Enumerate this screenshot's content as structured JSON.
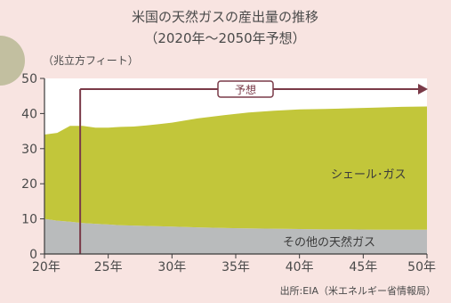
{
  "chart_data": {
    "type": "area",
    "title": "米国の天然ガスの産出量の推移",
    "subtitle": "（2020年〜2050年予想）",
    "ylabel": "（兆立方フィート）",
    "ylim": [
      0,
      50
    ],
    "xlim": [
      2020,
      2050
    ],
    "yticks": [
      0,
      10,
      20,
      30,
      40,
      50
    ],
    "xtick_values": [
      2020,
      2025,
      2030,
      2035,
      2040,
      2045,
      2050
    ],
    "xtick_labels": [
      "20年",
      "25年",
      "30年",
      "35年",
      "40年",
      "45年",
      "50年"
    ],
    "x": [
      2020,
      2021,
      2022,
      2023,
      2024,
      2025,
      2026,
      2027,
      2028,
      2029,
      2030,
      2032,
      2034,
      2036,
      2038,
      2040,
      2042,
      2044,
      2046,
      2048,
      2050
    ],
    "series": [
      {
        "name": "その他の天然ガス",
        "color": "#b9bbbc",
        "values": [
          10,
          9.5,
          9.2,
          8.8,
          8.6,
          8.4,
          8.2,
          8.1,
          8.0,
          7.9,
          7.8,
          7.6,
          7.4,
          7.3,
          7.2,
          7.1,
          7.0,
          7.0,
          6.9,
          6.9,
          6.9
        ]
      },
      {
        "name": "シェール･ガス",
        "color": "#c2c63a",
        "values": [
          24,
          25,
          27.3,
          27.7,
          27.4,
          27.6,
          28.0,
          28.2,
          28.6,
          29.1,
          29.6,
          31.0,
          32.1,
          33.0,
          33.6,
          34.1,
          34.3,
          34.5,
          34.8,
          35.0,
          35.1
        ]
      }
    ],
    "forecast": {
      "label": "予想",
      "start_x": 2022.8,
      "end_x": 2050
    },
    "source": "出所:EIA（米エネルギー省情報局）",
    "grid": false,
    "legend": "inline-labels"
  },
  "colors": {
    "background": "#f8e4e1",
    "plot_background": "#ffffff",
    "forecast_line": "#7a3a48",
    "axis": "#3a3a3a"
  }
}
